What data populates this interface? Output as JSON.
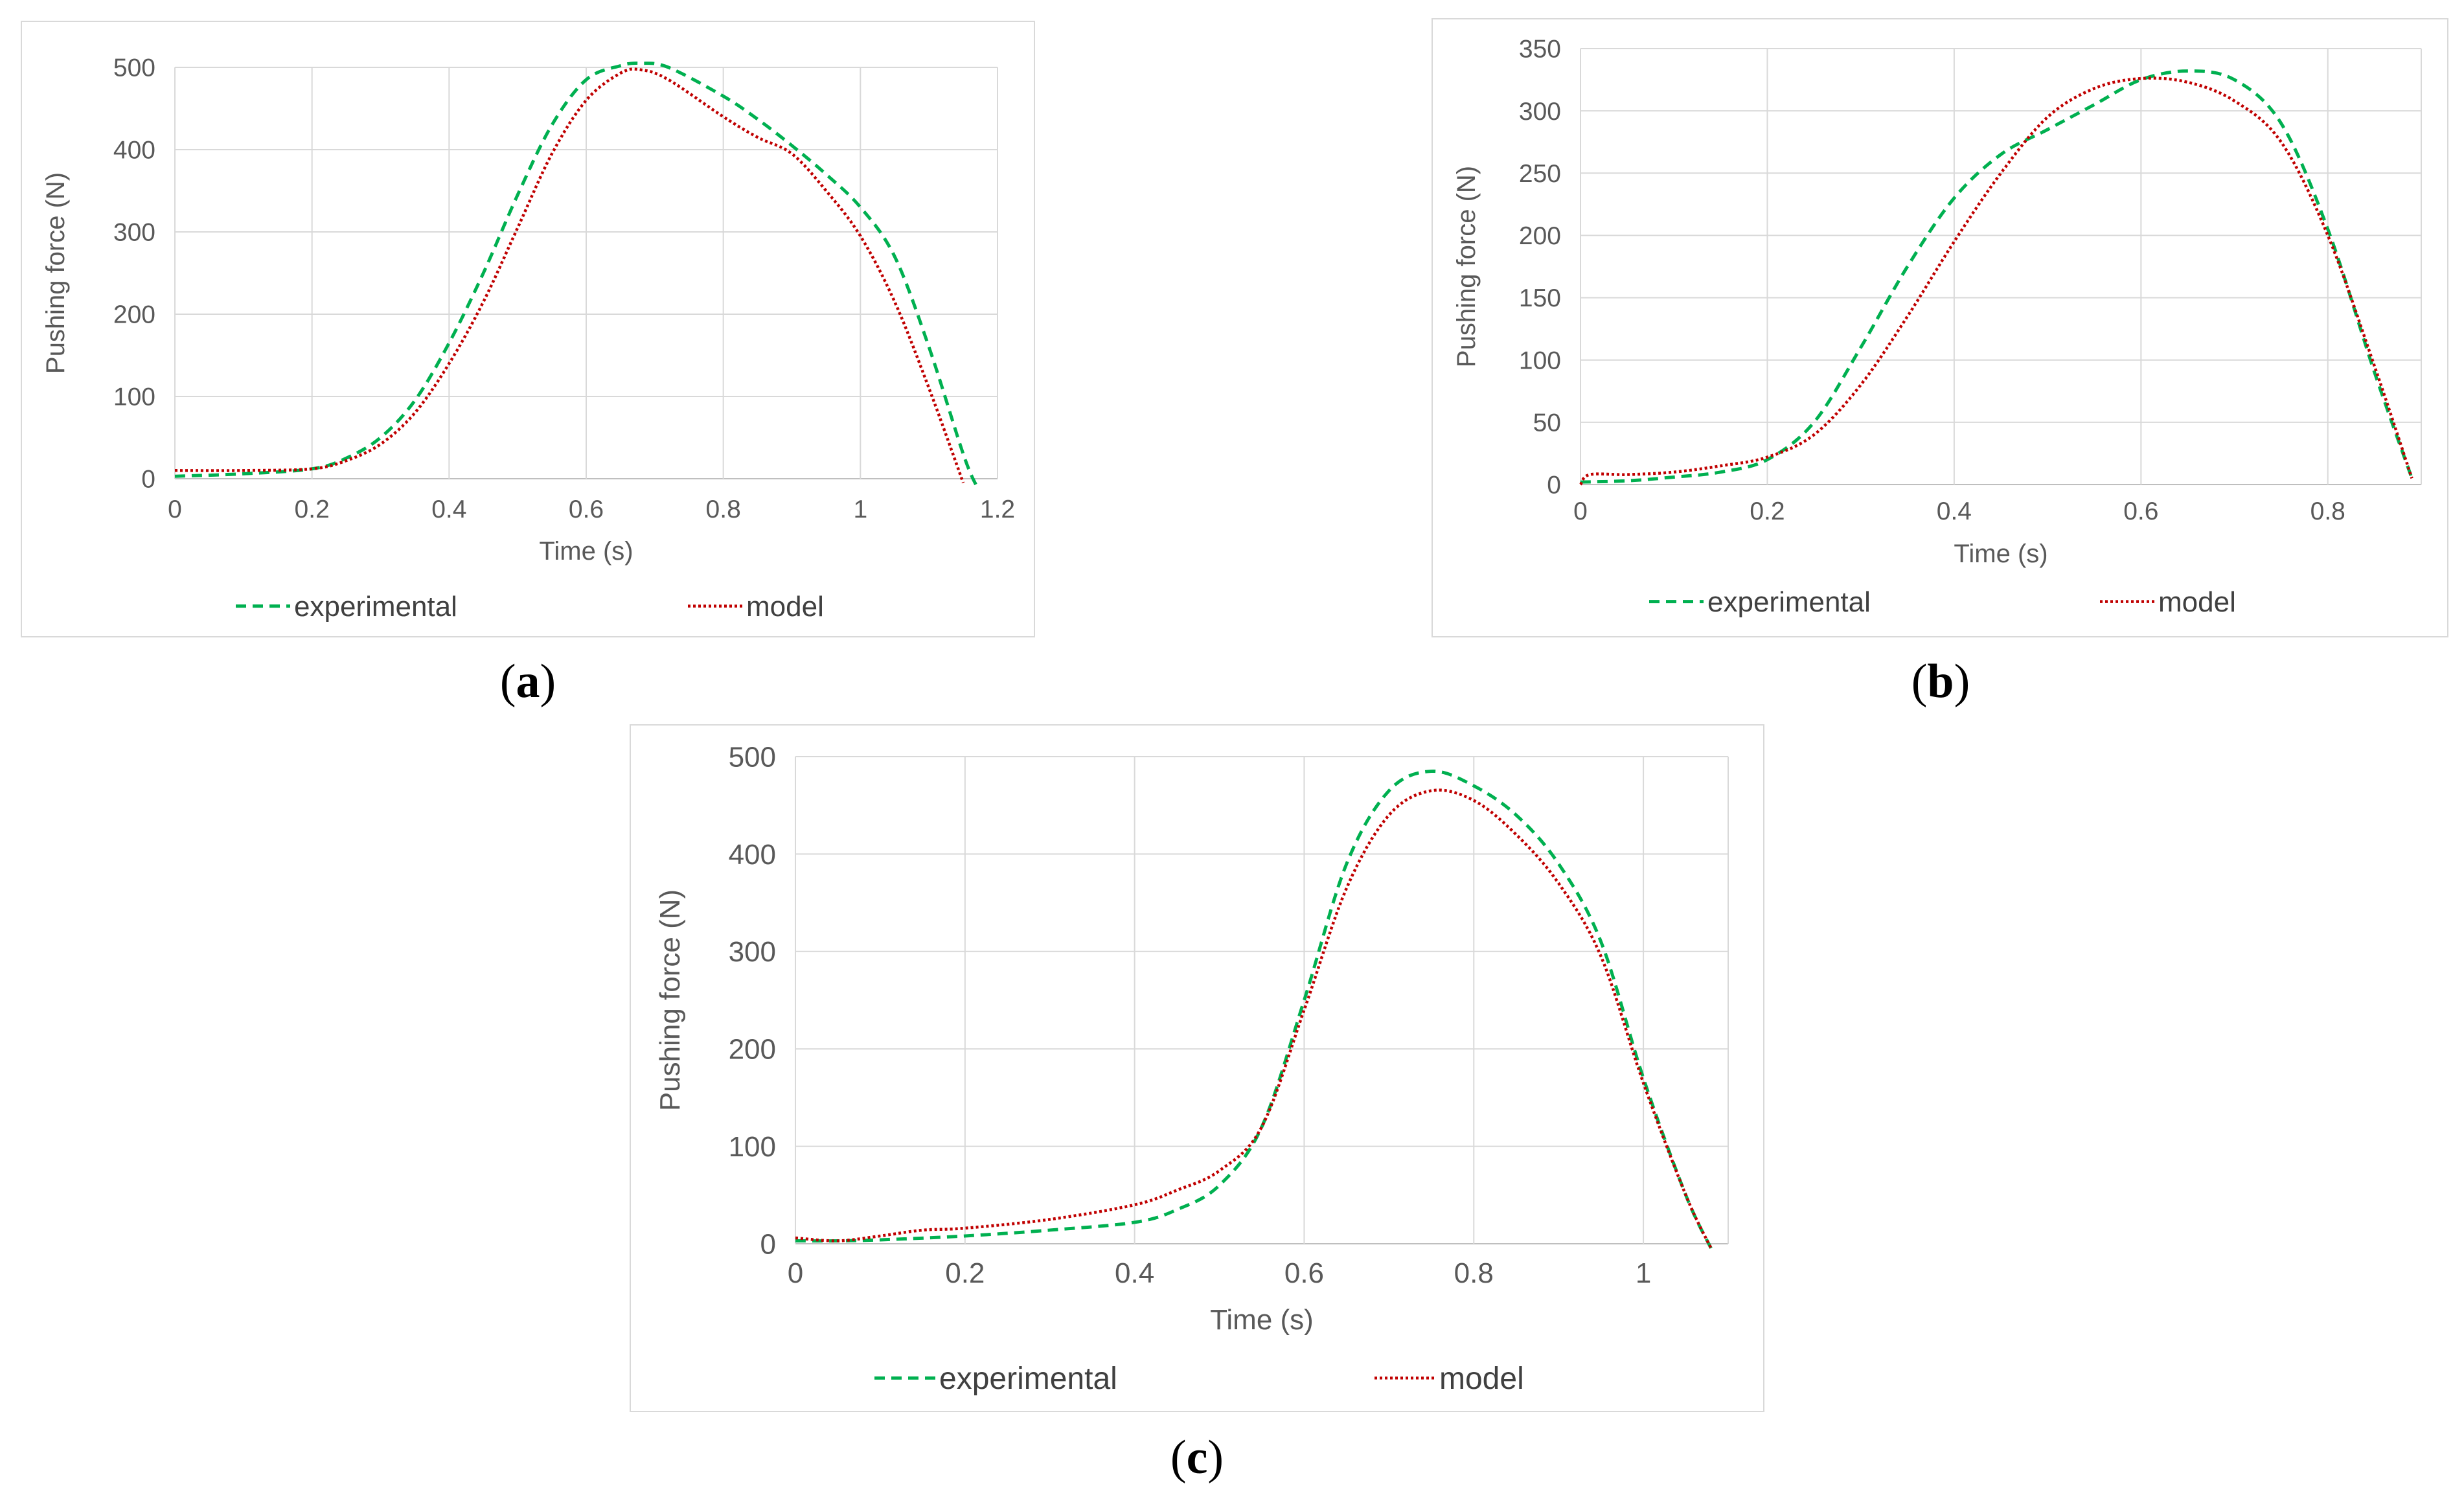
{
  "charts": [
    {
      "panel": "a",
      "caption": "a",
      "chart_data": {
        "type": "line",
        "xlabel": "Time (s)",
        "ylabel": "Pushing force (N)",
        "xlim": [
          0,
          1.2
        ],
        "ylim": [
          0,
          500
        ],
        "xticks": [
          0,
          0.2,
          0.4,
          0.6,
          0.8,
          1,
          1.2
        ],
        "xtick_labels": [
          "0",
          "0.2",
          "0.4",
          "0.6",
          "0.8",
          "1",
          "1.2"
        ],
        "yticks": [
          0,
          100,
          200,
          300,
          400,
          500
        ],
        "ytick_labels": [
          "0",
          "100",
          "200",
          "300",
          "400",
          "500"
        ],
        "grid": true,
        "legend_position": "bottom",
        "series": [
          {
            "name": "experimental",
            "color": "#00b050",
            "style": "dashed",
            "x": [
              0,
              0.1,
              0.2,
              0.25,
              0.3,
              0.35,
              0.4,
              0.45,
              0.5,
              0.55,
              0.6,
              0.65,
              0.68,
              0.72,
              0.8,
              0.85,
              0.9,
              0.95,
              1.0,
              1.05,
              1.1,
              1.15,
              1.17
            ],
            "y": [
              3,
              6,
              12,
              25,
              50,
              95,
              165,
              250,
              345,
              430,
              485,
              502,
              505,
              500,
              465,
              437,
              405,
              370,
              330,
              270,
              160,
              30,
              -10
            ]
          },
          {
            "name": "model",
            "color": "#c00000",
            "style": "dotted",
            "x": [
              0,
              0.1,
              0.2,
              0.25,
              0.3,
              0.35,
              0.4,
              0.45,
              0.5,
              0.55,
              0.6,
              0.65,
              0.68,
              0.72,
              0.8,
              0.85,
              0.9,
              0.95,
              1.0,
              1.05,
              1.1,
              1.15
            ],
            "y": [
              10,
              10,
              12,
              22,
              42,
              80,
              140,
              215,
              305,
              395,
              460,
              493,
              497,
              485,
              440,
              415,
              395,
              350,
              295,
              215,
              110,
              -5
            ]
          }
        ]
      }
    },
    {
      "panel": "b",
      "caption": "b",
      "chart_data": {
        "type": "line",
        "xlabel": "Time (s)",
        "ylabel": "Pushing force (N)",
        "xlim": [
          0,
          0.9
        ],
        "ylim": [
          0,
          350
        ],
        "xticks": [
          0,
          0.2,
          0.4,
          0.6,
          0.8
        ],
        "xtick_labels": [
          "0",
          "0.2",
          "0.4",
          "0.6",
          "0.8"
        ],
        "yticks": [
          0,
          50,
          100,
          150,
          200,
          250,
          300,
          350
        ],
        "ytick_labels": [
          "0",
          "50",
          "100",
          "150",
          "200",
          "250",
          "300",
          "350"
        ],
        "grid": true,
        "legend_position": "bottom",
        "series": [
          {
            "name": "experimental",
            "color": "#00b050",
            "style": "dashed",
            "x": [
              0,
              0.05,
              0.1,
              0.15,
              0.2,
              0.25,
              0.3,
              0.35,
              0.4,
              0.45,
              0.5,
              0.55,
              0.6,
              0.65,
              0.7,
              0.75,
              0.8,
              0.85,
              0.89
            ],
            "y": [
              2,
              3,
              6,
              10,
              20,
              50,
              110,
              175,
              230,
              265,
              285,
              305,
              325,
              332,
              325,
              290,
              205,
              90,
              5
            ]
          },
          {
            "name": "model",
            "color": "#c00000",
            "style": "dotted",
            "x": [
              0,
              0.01,
              0.05,
              0.1,
              0.15,
              0.2,
              0.25,
              0.3,
              0.35,
              0.4,
              0.45,
              0.5,
              0.55,
              0.6,
              0.65,
              0.7,
              0.75,
              0.8,
              0.85,
              0.89
            ],
            "y": [
              0,
              8,
              8,
              10,
              15,
              22,
              40,
              80,
              135,
              195,
              250,
              295,
              318,
              326,
              323,
              308,
              275,
              200,
              95,
              5
            ]
          }
        ]
      }
    },
    {
      "panel": "c",
      "caption": "c",
      "chart_data": {
        "type": "line",
        "xlabel": "Time (s)",
        "ylabel": "Pushing force (N)",
        "xlim": [
          0,
          1.1
        ],
        "ylim": [
          0,
          500
        ],
        "xticks": [
          0,
          0.2,
          0.4,
          0.6,
          0.8,
          1
        ],
        "xtick_labels": [
          "0",
          "0.2",
          "0.4",
          "0.6",
          "0.8",
          "1"
        ],
        "yticks": [
          0,
          100,
          200,
          300,
          400,
          500
        ],
        "ytick_labels": [
          "0",
          "100",
          "200",
          "300",
          "400",
          "500"
        ],
        "grid": true,
        "legend_position": "bottom",
        "series": [
          {
            "name": "experimental",
            "color": "#00b050",
            "style": "dashed",
            "x": [
              0,
              0.05,
              0.1,
              0.2,
              0.3,
              0.4,
              0.45,
              0.5,
              0.55,
              0.6,
              0.65,
              0.7,
              0.75,
              0.8,
              0.85,
              0.9,
              0.95,
              1.0,
              1.05,
              1.08
            ],
            "y": [
              3,
              3,
              4,
              8,
              14,
              22,
              35,
              60,
              120,
              250,
              390,
              465,
              485,
              470,
              440,
              390,
              310,
              170,
              50,
              -5
            ]
          },
          {
            "name": "model",
            "color": "#c00000",
            "style": "dotted",
            "x": [
              0,
              0.05,
              0.1,
              0.15,
              0.2,
              0.3,
              0.4,
              0.45,
              0.5,
              0.55,
              0.6,
              0.65,
              0.7,
              0.75,
              0.8,
              0.85,
              0.9,
              0.95,
              1.0,
              1.05,
              1.08
            ],
            "y": [
              6,
              3,
              8,
              14,
              16,
              25,
              40,
              55,
              75,
              120,
              240,
              365,
              440,
              465,
              455,
              420,
              370,
              295,
              165,
              50,
              -5
            ]
          }
        ]
      }
    }
  ]
}
